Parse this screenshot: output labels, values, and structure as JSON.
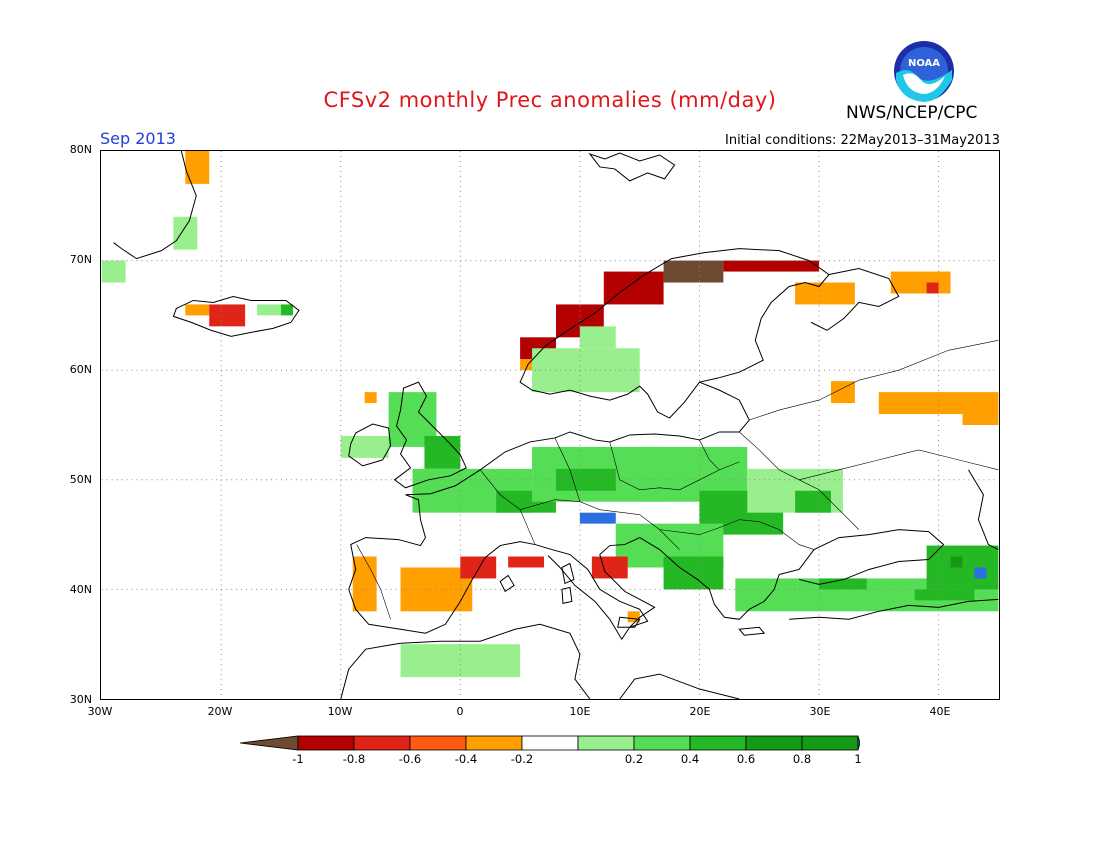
{
  "header": {
    "title": "CFSv2 monthly Prec anomalies (mm/day)",
    "agency": "NWS/NCEP/CPC",
    "month": "Sep 2013",
    "initial_conditions": "Initial conditions: 22May2013–31May2013"
  },
  "map": {
    "lat_labels": [
      "80N",
      "70N",
      "60N",
      "50N",
      "40N",
      "30N"
    ],
    "lon_labels": [
      "30W",
      "20W",
      "10W",
      "0",
      "10E",
      "20E",
      "30E",
      "40E"
    ],
    "lon_range": [
      -30,
      45
    ],
    "lat_range": [
      30,
      80
    ]
  },
  "legend": {
    "labels": [
      "-1",
      "-0.8",
      "-0.6",
      "-0.4",
      "-0.2",
      "0.2",
      "0.4",
      "0.6",
      "0.8",
      "1"
    ],
    "colors": [
      "#6e4a32",
      "#b30000",
      "#e02418",
      "#ff5a12",
      "#ff9f00",
      "#ffffff",
      "#99ee8e",
      "#55de55",
      "#25b825",
      "#159a15",
      "#2b6fe0"
    ]
  },
  "chart_data": {
    "type": "heatmap",
    "title": "CFSv2 monthly Prec anomalies (mm/day)",
    "units": "mm/day",
    "cell_degrees": 1,
    "regions": [
      {
        "lon": [
          -23,
          -21
        ],
        "lat": [
          77,
          80
        ],
        "value": -0.3
      },
      {
        "lon": [
          -30,
          -28
        ],
        "lat": [
          68,
          70
        ],
        "value": 0.3
      },
      {
        "lon": [
          -24,
          -22
        ],
        "lat": [
          71,
          74
        ],
        "value": 0.3
      },
      {
        "lon": [
          -23,
          -21
        ],
        "lat": [
          65,
          66
        ],
        "value": -0.3
      },
      {
        "lon": [
          -21,
          -18
        ],
        "lat": [
          64,
          66
        ],
        "value": -0.5
      },
      {
        "lon": [
          -17,
          -15
        ],
        "lat": [
          65,
          66
        ],
        "value": 0.3
      },
      {
        "lon": [
          -15,
          -14
        ],
        "lat": [
          65,
          66
        ],
        "value": 0.7
      },
      {
        "lon": [
          5,
          8
        ],
        "lat": [
          61,
          63
        ],
        "value": -0.7
      },
      {
        "lon": [
          8,
          12
        ],
        "lat": [
          63,
          66
        ],
        "value": -0.6
      },
      {
        "lon": [
          12,
          17
        ],
        "lat": [
          66,
          69
        ],
        "value": -0.7
      },
      {
        "lon": [
          17,
          22
        ],
        "lat": [
          68,
          70
        ],
        "value": -0.8
      },
      {
        "lon": [
          22,
          30
        ],
        "lat": [
          69,
          70
        ],
        "value": -0.6
      },
      {
        "lon": [
          5,
          7
        ],
        "lat": [
          60,
          61
        ],
        "value": -0.3
      },
      {
        "lon": [
          6,
          15
        ],
        "lat": [
          58,
          62
        ],
        "value": 0.3
      },
      {
        "lon": [
          10,
          13
        ],
        "lat": [
          62,
          64
        ],
        "value": 0.3
      },
      {
        "lon": [
          28,
          33
        ],
        "lat": [
          66,
          68
        ],
        "value": -0.3
      },
      {
        "lon": [
          36,
          41
        ],
        "lat": [
          67,
          69
        ],
        "value": -0.3
      },
      {
        "lon": [
          39,
          40
        ],
        "lat": [
          67,
          68
        ],
        "value": -0.5
      },
      {
        "lon": [
          31,
          33
        ],
        "lat": [
          57,
          59
        ],
        "value": -0.3
      },
      {
        "lon": [
          35,
          45
        ],
        "lat": [
          56,
          58
        ],
        "value": -0.3
      },
      {
        "lon": [
          42,
          45
        ],
        "lat": [
          55,
          57
        ],
        "value": -0.3
      },
      {
        "lon": [
          -6,
          -2
        ],
        "lat": [
          53,
          58
        ],
        "value": 0.5
      },
      {
        "lon": [
          -3,
          0
        ],
        "lat": [
          51,
          54
        ],
        "value": 0.7
      },
      {
        "lon": [
          -10,
          -6
        ],
        "lat": [
          52,
          54
        ],
        "value": 0.3
      },
      {
        "lon": [
          -8,
          -7
        ],
        "lat": [
          57,
          58
        ],
        "value": -0.3
      },
      {
        "lon": [
          -4,
          6
        ],
        "lat": [
          47,
          51
        ],
        "value": 0.4
      },
      {
        "lon": [
          3,
          8
        ],
        "lat": [
          47,
          49
        ],
        "value": 0.7
      },
      {
        "lon": [
          6,
          17
        ],
        "lat": [
          48,
          53
        ],
        "value": 0.5
      },
      {
        "lon": [
          8,
          13
        ],
        "lat": [
          49,
          51
        ],
        "value": 0.7
      },
      {
        "lon": [
          10,
          13
        ],
        "lat": [
          46,
          47
        ],
        "value": 1.0
      },
      {
        "lon": [
          15,
          24
        ],
        "lat": [
          48,
          53
        ],
        "value": 0.4
      },
      {
        "lon": [
          20,
          27
        ],
        "lat": [
          45,
          49
        ],
        "value": 0.6
      },
      {
        "lon": [
          24,
          32
        ],
        "lat": [
          47,
          51
        ],
        "value": 0.3
      },
      {
        "lon": [
          28,
          31
        ],
        "lat": [
          47,
          49
        ],
        "value": 0.6
      },
      {
        "lon": [
          13,
          22
        ],
        "lat": [
          42,
          46
        ],
        "value": 0.5
      },
      {
        "lon": [
          17,
          22
        ],
        "lat": [
          40,
          43
        ],
        "value": 0.6
      },
      {
        "lon": [
          23,
          45
        ],
        "lat": [
          38,
          41
        ],
        "value": 0.4
      },
      {
        "lon": [
          30,
          34
        ],
        "lat": [
          40,
          41
        ],
        "value": 0.7
      },
      {
        "lon": [
          38,
          43
        ],
        "lat": [
          39,
          40
        ],
        "value": 0.7
      },
      {
        "lon": [
          39,
          45
        ],
        "lat": [
          40,
          44
        ],
        "value": 0.6
      },
      {
        "lon": [
          41,
          42
        ],
        "lat": [
          42,
          43
        ],
        "value": 0.9
      },
      {
        "lon": [
          43,
          44
        ],
        "lat": [
          41,
          42
        ],
        "value": 1.0
      },
      {
        "lon": [
          -5,
          5
        ],
        "lat": [
          32,
          35
        ],
        "value": 0.3
      },
      {
        "lon": [
          -9,
          -7
        ],
        "lat": [
          38,
          43
        ],
        "value": -0.3
      },
      {
        "lon": [
          -5,
          1
        ],
        "lat": [
          38,
          42
        ],
        "value": -0.3
      },
      {
        "lon": [
          0,
          3
        ],
        "lat": [
          41,
          43
        ],
        "value": -0.5
      },
      {
        "lon": [
          4,
          7
        ],
        "lat": [
          42,
          43
        ],
        "value": -0.5
      },
      {
        "lon": [
          11,
          14
        ],
        "lat": [
          41,
          43
        ],
        "value": -0.5
      },
      {
        "lon": [
          14,
          15
        ],
        "lat": [
          37,
          38
        ],
        "value": -0.3
      }
    ]
  }
}
